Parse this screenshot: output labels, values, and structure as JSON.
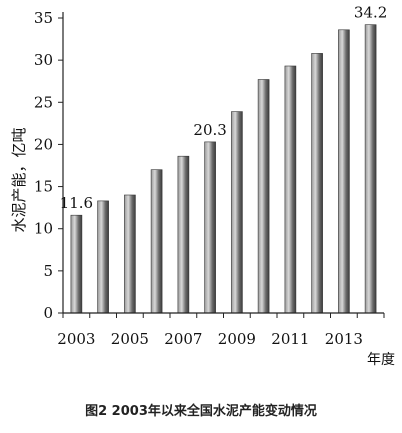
{
  "caption": "图2 2003年以来全国水泥产能变动情况",
  "chart_data": {
    "type": "bar",
    "x": [
      2003,
      2004,
      2005,
      2006,
      2007,
      2008,
      2009,
      2010,
      2011,
      2012,
      2013,
      2014
    ],
    "values": [
      11.6,
      13.3,
      14.0,
      17.0,
      18.6,
      20.3,
      23.9,
      27.7,
      29.3,
      30.8,
      33.6,
      34.2
    ],
    "data_labels": [
      {
        "index": 0,
        "text": "11.6"
      },
      {
        "index": 5,
        "text": "20.3"
      },
      {
        "index": 11,
        "text": "34.2"
      }
    ],
    "x_tick_labels": [
      "2003",
      "2005",
      "2007",
      "2009",
      "2011",
      "2013"
    ],
    "x_tick_indices": [
      0,
      2,
      4,
      6,
      8,
      10
    ],
    "y_ticks": [
      0,
      5,
      10,
      15,
      20,
      25,
      30,
      35
    ],
    "ylim": [
      0,
      35
    ],
    "ylabel": "水泥产能，亿吨",
    "xlabel": "年度",
    "bar_color": "#6b6b6b",
    "grid": false
  }
}
